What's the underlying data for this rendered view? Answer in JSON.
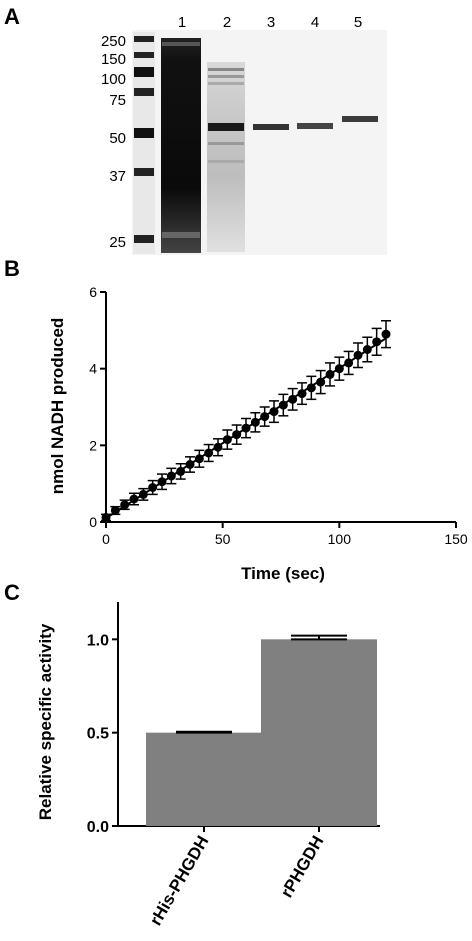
{
  "panels": {
    "a": "A",
    "b": "B",
    "c": "C"
  },
  "gel": {
    "ladder_labels": [
      "250",
      "150",
      "100",
      "75",
      "50",
      "37",
      "25"
    ],
    "lane_labels": [
      "1",
      "2",
      "3",
      "4",
      "5"
    ]
  },
  "chart_data": [
    {
      "type": "scatter",
      "xlabel": "Time (sec)",
      "ylabel": "nmol NADH produced",
      "xlim": [
        0,
        150
      ],
      "ylim": [
        0,
        6
      ],
      "xticks": [
        "0",
        "50",
        "100",
        "150"
      ],
      "yticks": [
        "0",
        "2",
        "4",
        "6"
      ],
      "grid": false,
      "fit_line": true,
      "x": [
        0,
        4,
        8,
        12,
        16,
        20,
        24,
        28,
        32,
        36,
        40,
        44,
        48,
        52,
        56,
        60,
        64,
        68,
        72,
        76,
        80,
        84,
        88,
        92,
        96,
        100,
        104,
        108,
        112,
        116,
        120
      ],
      "y": [
        0.12,
        0.3,
        0.45,
        0.6,
        0.72,
        0.9,
        1.05,
        1.2,
        1.32,
        1.5,
        1.65,
        1.8,
        1.95,
        2.15,
        2.28,
        2.45,
        2.6,
        2.75,
        2.88,
        3.05,
        3.2,
        3.35,
        3.5,
        3.65,
        3.85,
        4.0,
        4.15,
        4.35,
        4.5,
        4.7,
        4.9
      ],
      "error": [
        0.08,
        0.1,
        0.12,
        0.15,
        0.15,
        0.18,
        0.2,
        0.2,
        0.2,
        0.2,
        0.22,
        0.22,
        0.22,
        0.25,
        0.25,
        0.25,
        0.25,
        0.25,
        0.28,
        0.28,
        0.28,
        0.28,
        0.3,
        0.3,
        0.3,
        0.3,
        0.3,
        0.32,
        0.32,
        0.35,
        0.35
      ]
    },
    {
      "type": "bar",
      "categories": [
        "rHis-PHGDH",
        "rPHGDH"
      ],
      "values": [
        0.5,
        1.0
      ],
      "error": [
        0.005,
        0.02
      ],
      "ylabel": "Relative specific activity",
      "ylim": [
        0,
        1.2
      ],
      "yticks": [
        "0.0",
        "0.5",
        "1.0"
      ],
      "bar_color": "#808080"
    }
  ]
}
